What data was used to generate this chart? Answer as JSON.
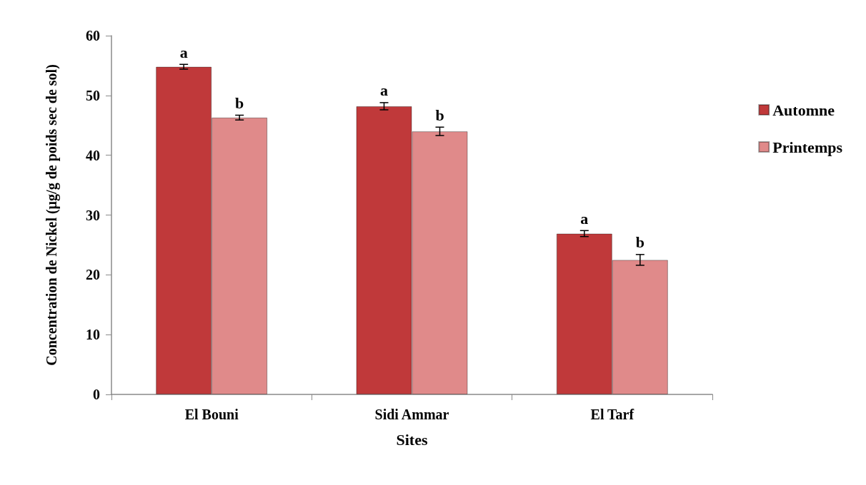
{
  "chart_data": {
    "type": "bar",
    "xlabel": "Sites",
    "ylabel": "Concentration de Nickel (µg/g de poids sec de sol)",
    "categories": [
      "El Bouni",
      "Sidi Ammar",
      "El Tarf"
    ],
    "series": [
      {
        "name": "Automne",
        "color": "#c0393a",
        "values": [
          54.8,
          48.2,
          26.9
        ],
        "errors": [
          0.4,
          0.6,
          0.5
        ]
      },
      {
        "name": "Printemps",
        "color": "#e08a8a",
        "values": [
          46.3,
          44.0,
          22.5
        ],
        "errors": [
          0.4,
          0.7,
          0.9
        ]
      }
    ],
    "ylim": [
      0,
      60
    ],
    "yticks": [
      0,
      10,
      20,
      30,
      40,
      50,
      60
    ],
    "grid": false,
    "legend": "right",
    "annotations": [
      {
        "text": "a",
        "x": "El Bouni",
        "y": 54.8
      },
      {
        "text": "b",
        "x": "El Bouni",
        "y": 46.3
      },
      {
        "text": "a",
        "x": "Sidi Ammar",
        "y": 48.2
      },
      {
        "text": "b",
        "x": "Sidi Ammar",
        "y": 44.0
      },
      {
        "text": "a",
        "x": "El Tarf",
        "y": 26.9
      },
      {
        "text": "b",
        "x": "El Tarf",
        "y": 22.5
      }
    ]
  }
}
